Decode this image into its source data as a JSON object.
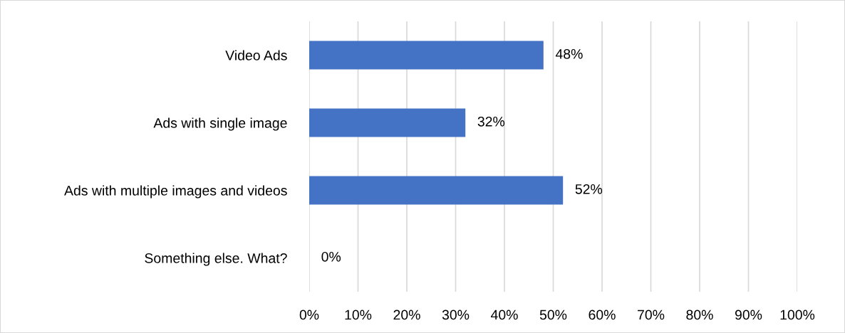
{
  "chart_data": {
    "type": "bar",
    "orientation": "horizontal",
    "categories": [
      "Video Ads",
      "Ads with single image",
      "Ads with multiple images and videos",
      "Something else. What?"
    ],
    "values": [
      48,
      32,
      52,
      0
    ],
    "color": "#4472c4",
    "value_labels": [
      "48%",
      "32%",
      "52%",
      "0%"
    ],
    "xlim": [
      0,
      100
    ],
    "xticks": [
      {
        "value": 0,
        "label": "0%"
      },
      {
        "value": 10,
        "label": "10%"
      },
      {
        "value": 20,
        "label": "20%"
      },
      {
        "value": 30,
        "label": "30%"
      },
      {
        "value": 40,
        "label": "40%"
      },
      {
        "value": 50,
        "label": "50%"
      },
      {
        "value": 60,
        "label": "60%"
      },
      {
        "value": 70,
        "label": "70%"
      },
      {
        "value": 80,
        "label": "80%"
      },
      {
        "value": 90,
        "label": "90%"
      },
      {
        "value": 100,
        "label": "100%"
      }
    ],
    "grid": "x",
    "legend": false
  }
}
